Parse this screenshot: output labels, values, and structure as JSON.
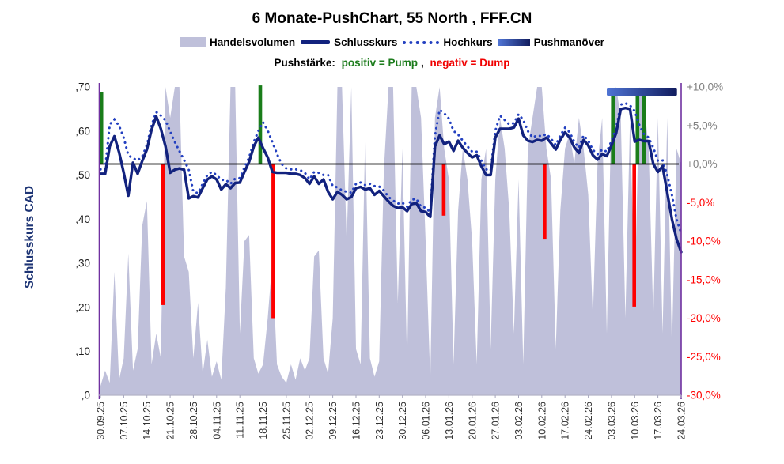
{
  "header": {
    "title": "6 Monate-PushChart, 55 North , FFF.CN",
    "subtitle_prefix": "Pushstärke:",
    "subtitle_positive": "positiv = Pump",
    "subtitle_separator": ",",
    "subtitle_negative": "negativ = Dump"
  },
  "legend": {
    "items": [
      {
        "label": "Handelsvolumen",
        "type": "area-swatch"
      },
      {
        "label": "Schlusskurs",
        "type": "solid-line"
      },
      {
        "label": "Hochkurs",
        "type": "dotted-line"
      },
      {
        "label": "Pushmanöver",
        "type": "gradient-bar"
      }
    ]
  },
  "axes": {
    "left_title": "Schlusskurs CAD",
    "left_ticks": [
      ",70",
      ",60",
      ",50",
      ",40",
      ",30",
      ",20",
      ",10",
      ",0"
    ],
    "left_tick_values": [
      0.7,
      0.6,
      0.5,
      0.4,
      0.3,
      0.2,
      0.1,
      0.0
    ],
    "right_ticks": [
      "+10,0%",
      "+5,0%",
      "+0,0%",
      "-5,0%",
      "-10,0%",
      "-15,0%",
      "-20,0%",
      "-25,0%",
      "-30,0%"
    ],
    "right_tick_values": [
      10,
      5,
      0,
      -5,
      -10,
      -15,
      -20,
      -25,
      -30
    ],
    "x_ticks": [
      "30.09.25",
      "07.10.25",
      "14.10.25",
      "21.10.25",
      "28.10.25",
      "04.11.25",
      "11.11.25",
      "18.11.25",
      "25.11.25",
      "02.12.25",
      "09.12.25",
      "16.12.25",
      "23.12.25",
      "30.12.25",
      "06.01.26",
      "13.01.26",
      "20.01.26",
      "27.01.26",
      "03.02.26",
      "10.02.26",
      "17.02.26",
      "24.02.26",
      "03.03.26",
      "10.03.26",
      "17.03.26",
      "24.03.26"
    ]
  },
  "colors": {
    "volume_fill": "#bfc0da",
    "close_line": "#12227e",
    "high_line": "#2340c0",
    "pump": "#1a7d1a",
    "dump": "#fe0000",
    "push_grad_start": "#4f74d4",
    "push_grad_end": "#111c5e",
    "axis_purple": "#7030a0",
    "bottom_axis": "#b3b3c6",
    "zero_line": "#000000",
    "pos_pct_label": "#808080",
    "neg_pct_label": "#ff0000",
    "cad_label": "#1a1a1a",
    "date_label": "#333333"
  },
  "chart_data": {
    "type": "combo",
    "description": "Weekly-labelled daily series, 6 months; close & high in CAD (left axis 0–0.70), pump/dump bars in % (right axis -30%..+10%), volume as fraction of plot height (no scale shown)",
    "x_tick_dates": [
      "30.09.25",
      "07.10.25",
      "14.10.25",
      "21.10.25",
      "28.10.25",
      "04.11.25",
      "11.11.25",
      "18.11.25",
      "25.11.25",
      "02.12.25",
      "09.12.25",
      "16.12.25",
      "23.12.25",
      "30.12.25",
      "06.01.26",
      "13.01.26",
      "20.01.26",
      "27.01.26",
      "03.02.26",
      "10.02.26",
      "17.02.26",
      "24.02.26",
      "03.03.26",
      "10.03.26",
      "17.03.26",
      "24.03.26"
    ],
    "days_per_tick": 5,
    "cad_axis": {
      "min": 0,
      "max": 0.7
    },
    "pct_axis": {
      "min": -30,
      "max": 10
    },
    "baseline_cad": 0.525,
    "close": [
      0.503,
      0.503,
      0.565,
      0.588,
      0.552,
      0.505,
      0.453,
      0.528,
      0.503,
      0.532,
      0.558,
      0.603,
      0.633,
      0.605,
      0.565,
      0.505,
      0.512,
      0.515,
      0.512,
      0.447,
      0.452,
      0.449,
      0.47,
      0.49,
      0.497,
      0.49,
      0.467,
      0.479,
      0.47,
      0.482,
      0.483,
      0.507,
      0.53,
      0.565,
      0.585,
      0.561,
      0.54,
      0.507,
      0.505,
      0.505,
      0.505,
      0.503,
      0.503,
      0.5,
      0.493,
      0.48,
      0.497,
      0.48,
      0.49,
      0.462,
      0.445,
      0.462,
      0.455,
      0.445,
      0.45,
      0.47,
      0.473,
      0.467,
      0.47,
      0.455,
      0.464,
      0.452,
      0.44,
      0.43,
      0.425,
      0.427,
      0.418,
      0.434,
      0.436,
      0.418,
      0.416,
      0.405,
      0.565,
      0.59,
      0.57,
      0.576,
      0.555,
      0.578,
      0.562,
      0.55,
      0.54,
      0.545,
      0.52,
      0.5,
      0.5,
      0.585,
      0.605,
      0.605,
      0.605,
      0.608,
      0.628,
      0.59,
      0.578,
      0.575,
      0.58,
      0.578,
      0.585,
      0.572,
      0.558,
      0.58,
      0.597,
      0.585,
      0.563,
      0.55,
      0.58,
      0.567,
      0.545,
      0.535,
      0.548,
      0.543,
      0.567,
      0.595,
      0.65,
      0.652,
      0.65,
      0.576,
      0.58,
      0.577,
      0.577,
      0.525,
      0.507,
      0.52,
      0.46,
      0.4,
      0.355,
      0.325
    ],
    "high": [
      0.513,
      0.513,
      0.615,
      0.626,
      0.612,
      0.585,
      0.545,
      0.538,
      0.533,
      0.542,
      0.568,
      0.613,
      0.643,
      0.635,
      0.624,
      0.599,
      0.575,
      0.554,
      0.534,
      0.512,
      0.462,
      0.459,
      0.48,
      0.5,
      0.507,
      0.5,
      0.489,
      0.489,
      0.48,
      0.492,
      0.493,
      0.517,
      0.54,
      0.575,
      0.6,
      0.62,
      0.601,
      0.575,
      0.548,
      0.525,
      0.515,
      0.513,
      0.513,
      0.511,
      0.505,
      0.49,
      0.507,
      0.505,
      0.5,
      0.5,
      0.475,
      0.472,
      0.465,
      0.462,
      0.46,
      0.48,
      0.483,
      0.477,
      0.48,
      0.475,
      0.474,
      0.465,
      0.45,
      0.442,
      0.435,
      0.437,
      0.428,
      0.444,
      0.446,
      0.428,
      0.426,
      0.415,
      0.59,
      0.648,
      0.64,
      0.628,
      0.6,
      0.592,
      0.578,
      0.565,
      0.553,
      0.553,
      0.533,
      0.513,
      0.51,
      0.6,
      0.635,
      0.625,
      0.615,
      0.618,
      0.638,
      0.625,
      0.6,
      0.585,
      0.59,
      0.588,
      0.593,
      0.582,
      0.568,
      0.59,
      0.607,
      0.597,
      0.575,
      0.562,
      0.59,
      0.578,
      0.557,
      0.547,
      0.558,
      0.553,
      0.577,
      0.607,
      0.66,
      0.663,
      0.658,
      0.645,
      0.613,
      0.593,
      0.585,
      0.562,
      0.532,
      0.533,
      0.5,
      0.455,
      0.4,
      0.368
    ],
    "volume": [
      0.03,
      0.08,
      0.04,
      0.4,
      0.05,
      0.12,
      0.46,
      0.08,
      0.15,
      0.55,
      0.63,
      0.1,
      0.2,
      0.12,
      1.0,
      0.9,
      1.0,
      1.0,
      0.45,
      0.4,
      0.12,
      0.3,
      0.07,
      0.18,
      0.06,
      0.11,
      0.05,
      0.35,
      1.0,
      1.0,
      0.2,
      0.5,
      0.52,
      0.12,
      0.07,
      0.1,
      0.25,
      0.44,
      0.1,
      0.06,
      0.04,
      0.1,
      0.05,
      0.12,
      0.08,
      0.12,
      0.45,
      0.47,
      0.12,
      0.07,
      0.25,
      1.0,
      1.0,
      0.5,
      1.0,
      0.15,
      0.1,
      0.86,
      0.12,
      0.06,
      0.11,
      0.73,
      1.0,
      1.0,
      0.3,
      0.8,
      0.1,
      1.0,
      1.0,
      0.9,
      0.5,
      0.05,
      0.9,
      1.0,
      0.8,
      0.7,
      0.1,
      0.6,
      0.8,
      0.7,
      0.5,
      0.1,
      0.7,
      0.8,
      0.15,
      0.7,
      0.9,
      0.8,
      0.6,
      0.2,
      0.7,
      0.1,
      0.8,
      0.9,
      1.0,
      1.0,
      0.8,
      0.7,
      0.15,
      0.6,
      0.8,
      0.85,
      0.75,
      0.9,
      0.8,
      0.65,
      0.25,
      0.75,
      0.9,
      0.2,
      0.95,
      1.0,
      0.9,
      0.25,
      0.9,
      0.3,
      1.0,
      0.95,
      0.8,
      0.25,
      0.9,
      0.2,
      0.9,
      0.15,
      0.8,
      0.75
    ],
    "pumps": [
      {
        "day": 0.2,
        "pct": 9.3
      },
      {
        "day": 34.4,
        "pct": 10.2
      },
      {
        "day": 110.3,
        "pct": 8.9
      },
      {
        "day": 115.6,
        "pct": 8.9
      },
      {
        "day": 117.0,
        "pct": 8.9
      }
    ],
    "dumps": [
      {
        "day": 13.5,
        "pct": -18.3
      },
      {
        "day": 37.2,
        "pct": -20.0
      },
      {
        "day": 73.9,
        "pct": -6.7
      },
      {
        "day": 95.6,
        "pct": -9.7
      },
      {
        "day": 114.9,
        "pct": -18.5
      }
    ],
    "push_bar": {
      "day_start": 109.0,
      "day_end": 124.1
    }
  }
}
